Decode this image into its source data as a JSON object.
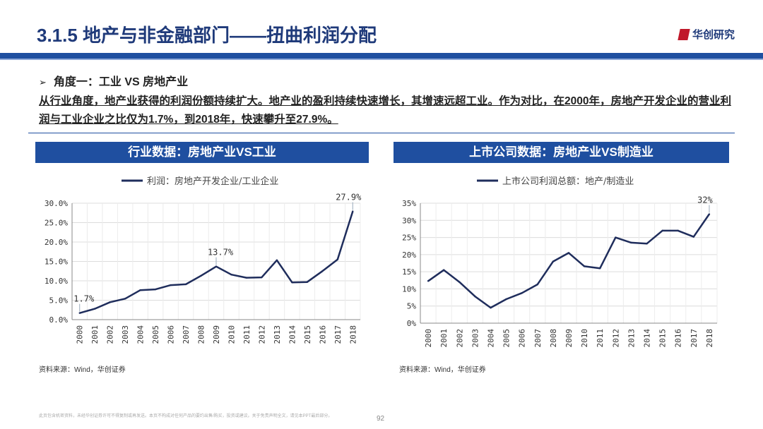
{
  "header": {
    "title": "3.1.5 地产与非金融部门——扭曲利润分配",
    "logo_text": "华创研究"
  },
  "subheading": "角度一：工业 VS 房地产业",
  "paragraph": "从行业角度，地产业获得的利润份额持续扩大。地产业的盈利持续快速增长，其增速远超工业。作为对比，在2000年，房地产开发企业的营业利润与工业企业之比仅为1.7%，到2018年，快速攀升至27.9%。",
  "panels": {
    "left_title": "行业数据：房地产业VS工业",
    "right_title": "上市公司数据：房地产业VS制造业",
    "left_source": "资料来源：Wind，华创证券",
    "right_source": "资料来源：Wind，华创证券"
  },
  "footer": {
    "disclaimer": "此页包含机密资料，未经华创证券许可不得复制或再发送。本页不构成对任何产品的要约出售/购买，投资或建议。关于免责声明全文，请见本PPT最后部分。",
    "page": "92"
  },
  "colors": {
    "line": "#1f2d5c",
    "accent": "#1f4fa0"
  },
  "chart_data": [
    {
      "type": "line",
      "legend": "利润：房地产开发企业/工业企业",
      "x": [
        "2000",
        "2001",
        "2002",
        "2003",
        "2004",
        "2005",
        "2006",
        "2007",
        "2008",
        "2009",
        "2010",
        "2011",
        "2012",
        "2013",
        "2014",
        "2015",
        "2016",
        "2017",
        "2018"
      ],
      "values": [
        1.7,
        2.8,
        4.5,
        5.4,
        7.6,
        7.8,
        8.9,
        9.1,
        11.3,
        13.7,
        11.6,
        10.8,
        10.9,
        15.3,
        9.6,
        9.7,
        12.5,
        15.5,
        27.9
      ],
      "yticks": [
        "0.0%",
        "5.0%",
        "10.0%",
        "15.0%",
        "20.0%",
        "25.0%",
        "30.0%"
      ],
      "ylim": [
        0,
        30
      ],
      "annotations": [
        {
          "index": 0,
          "label": "1.7%"
        },
        {
          "index": 9,
          "label": "13.7%"
        },
        {
          "index": 18,
          "label": "27.9%"
        }
      ]
    },
    {
      "type": "line",
      "legend": "上市公司利润总额：地产/制造业",
      "x": [
        "2000",
        "2001",
        "2002",
        "2003",
        "2004",
        "2005",
        "2006",
        "2007",
        "2008",
        "2009",
        "2010",
        "2011",
        "2012",
        "2013",
        "2014",
        "2015",
        "2016",
        "2017",
        "2018"
      ],
      "values": [
        12.3,
        15.5,
        12.0,
        7.8,
        4.5,
        7.0,
        8.8,
        11.3,
        18.0,
        20.5,
        16.6,
        16.0,
        25.0,
        23.5,
        23.2,
        27.0,
        27.0,
        25.2,
        31.8
      ],
      "yticks": [
        "0%",
        "5%",
        "10%",
        "15%",
        "20%",
        "25%",
        "30%",
        "35%"
      ],
      "ylim": [
        0,
        35
      ],
      "annotations": [
        {
          "index": 18,
          "label": "32%"
        }
      ]
    }
  ]
}
